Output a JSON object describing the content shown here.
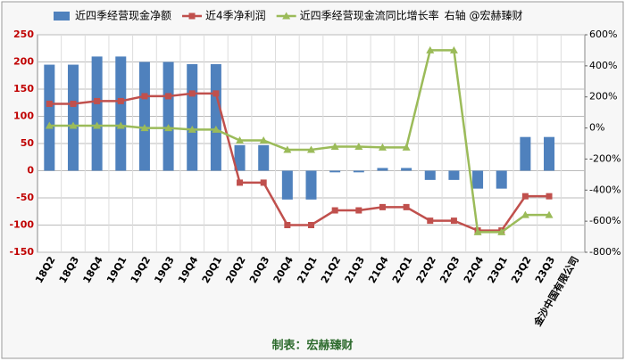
{
  "chart_data": {
    "type": "combo",
    "categories": [
      "18Q2",
      "18Q3",
      "18Q4",
      "19Q1",
      "19Q2",
      "19Q3",
      "19Q4",
      "20Q1",
      "20Q2",
      "20Q3",
      "20Q4",
      "21Q1",
      "21Q2",
      "21Q3",
      "21Q4",
      "22Q1",
      "22Q2",
      "22Q3",
      "22Q4",
      "23Q1",
      "23Q2",
      "23Q3",
      "金沙中国有限公司"
    ],
    "series": [
      {
        "name": "近四季经营现金净额",
        "type": "bar",
        "color": "#4f81bd",
        "values": [
          195,
          195,
          210,
          210,
          200,
          200,
          196,
          196,
          47,
          47,
          -53,
          -53,
          -3,
          -3,
          5,
          5,
          -17,
          -17,
          -33,
          -33,
          62,
          62,
          null
        ]
      },
      {
        "name": "近4季净利润",
        "type": "line",
        "marker": "square",
        "color": "#c0504d",
        "values": [
          123,
          123,
          128,
          128,
          137,
          137,
          142,
          142,
          -22,
          -22,
          -100,
          -100,
          -73,
          -73,
          -67,
          -67,
          -92,
          -92,
          -110,
          -110,
          -47,
          -47,
          null
        ]
      },
      {
        "name": "近四季经营现金流同比增长率",
        "type": "line",
        "marker": "triangle",
        "axis": "y2",
        "color": "#9bbb59",
        "values": [
          15,
          15,
          15,
          15,
          0,
          0,
          -10,
          -10,
          -80,
          -80,
          -140,
          -140,
          -120,
          -120,
          -125,
          -125,
          500,
          500,
          -670,
          -670,
          -560,
          -560,
          null
        ]
      }
    ],
    "legend_note": "右轴  @宏赫臻财",
    "footer": "制表：宏赫臻财",
    "ylim": [
      -150,
      250
    ],
    "yticks": [
      -150,
      -100,
      -50,
      0,
      50,
      100,
      150,
      200,
      250
    ],
    "y2lim": [
      -800,
      600
    ],
    "y2ticks": [
      {
        "value": -800,
        "label": "-800%"
      },
      {
        "value": -600,
        "label": "-600%"
      },
      {
        "value": -400,
        "label": "-400%"
      },
      {
        "value": -200,
        "label": "-200%"
      },
      {
        "value": 0,
        "label": "0%"
      },
      {
        "value": 200,
        "label": "200%"
      },
      {
        "value": 400,
        "label": "400%"
      },
      {
        "value": 600,
        "label": "600%"
      }
    ],
    "grid": true
  }
}
